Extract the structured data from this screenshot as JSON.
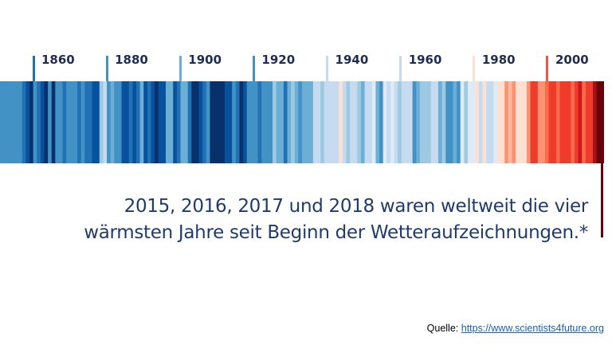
{
  "chart_data": {
    "type": "heatmap",
    "title": "",
    "palette": [
      "#08306b",
      "#08519c",
      "#2171b5",
      "#4292c6",
      "#6baed6",
      "#9ecae1",
      "#c6dbef",
      "#deebf7",
      "#fee0d2",
      "#fcbba1",
      "#fc9272",
      "#fb6a4a",
      "#ef3b2c",
      "#cb181d",
      "#a50f15",
      "#67000d"
    ],
    "stripe_levels": [
      3,
      3,
      3,
      3,
      3,
      3,
      2,
      1,
      0,
      3,
      2,
      1,
      0,
      3,
      0,
      3,
      3,
      2,
      3,
      3,
      3,
      2,
      3,
      2,
      2,
      1,
      1,
      5,
      6,
      3,
      4,
      3,
      3,
      1,
      1,
      2,
      1,
      2,
      4,
      1,
      2,
      1,
      0,
      1,
      1,
      4,
      4,
      1,
      2,
      4,
      4,
      2,
      0,
      0,
      1,
      2,
      3,
      0,
      0,
      0,
      0,
      1,
      1,
      3,
      2,
      0,
      1,
      3,
      3,
      3,
      2,
      3,
      3,
      3,
      5,
      4,
      4,
      2,
      4,
      5,
      4,
      3,
      4,
      4,
      4,
      6,
      6,
      5,
      6,
      6,
      6,
      6,
      8,
      6,
      5,
      6,
      6,
      5,
      4,
      6,
      6,
      7,
      4,
      3,
      7,
      6,
      7,
      6,
      5,
      6,
      6,
      6,
      3,
      4,
      5,
      5,
      5,
      6,
      6,
      4,
      5,
      3,
      3,
      4,
      3,
      7,
      5,
      7,
      7,
      8,
      6,
      8,
      6,
      6,
      7,
      8,
      8,
      10,
      9,
      10,
      8,
      8,
      8,
      10,
      12,
      12,
      10,
      10,
      11,
      12,
      12,
      11,
      12,
      12,
      12,
      11,
      12,
      13,
      11,
      12,
      12,
      14,
      15,
      15
    ],
    "x_ticks": [
      {
        "year": 1860,
        "label": "1860",
        "color": "#2171b5"
      },
      {
        "year": 1880,
        "label": "1880",
        "color": "#4292c6"
      },
      {
        "year": 1900,
        "label": "1900",
        "color": "#6baed6"
      },
      {
        "year": 1920,
        "label": "1920",
        "color": "#4292c6"
      },
      {
        "year": 1940,
        "label": "1940",
        "color": "#c6dbef"
      },
      {
        "year": 1960,
        "label": "1960",
        "color": "#c6dbef"
      },
      {
        "year": 1980,
        "label": "1980",
        "color": "#fee0d2"
      },
      {
        "year": 2000,
        "label": "2000",
        "color": "#f0553f"
      }
    ],
    "highlight_color": "#67000d"
  },
  "caption": {
    "line1": "2015, 2016, 2017 und 2018 waren weltweit die vier",
    "line2": "wärmsten Jahre seit Beginn der Wetteraufzeichnungen.*"
  },
  "source": {
    "label": "Quelle: ",
    "link_text": "https://www.scientists4future.org"
  }
}
